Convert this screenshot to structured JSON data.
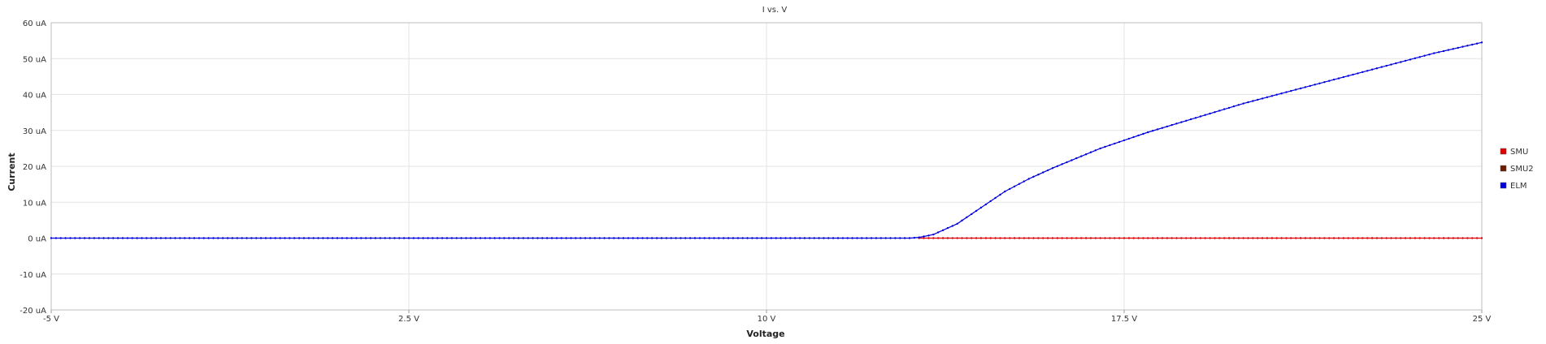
{
  "chart_data": {
    "type": "line",
    "title": "I vs. V",
    "xlabel": "Voltage",
    "ylabel": "Current",
    "xlim": [
      -5,
      25
    ],
    "ylim": [
      -20,
      60
    ],
    "x_ticks": [
      {
        "value": -5,
        "label": "-5 V"
      },
      {
        "value": 2.5,
        "label": "2.5 V"
      },
      {
        "value": 10,
        "label": "10 V"
      },
      {
        "value": 17.5,
        "label": "17.5 V"
      },
      {
        "value": 25,
        "label": "25 V"
      }
    ],
    "y_ticks": [
      {
        "value": -20,
        "label": "-20 uA"
      },
      {
        "value": -10,
        "label": "-10 uA"
      },
      {
        "value": 0,
        "label": "0 uA"
      },
      {
        "value": 10,
        "label": "10 uA"
      },
      {
        "value": 20,
        "label": "20 uA"
      },
      {
        "value": 30,
        "label": "30 uA"
      },
      {
        "value": 40,
        "label": "40 uA"
      },
      {
        "value": 50,
        "label": "50 uA"
      },
      {
        "value": 60,
        "label": "60 uA"
      }
    ],
    "grid": true,
    "legend_position": "right",
    "series": [
      {
        "name": "SMU",
        "color": "#e00000",
        "x": [
          13.2,
          14,
          15,
          16,
          17,
          18,
          19,
          20,
          21,
          22,
          23,
          24,
          25
        ],
        "y": [
          0,
          0,
          0,
          0,
          0,
          0,
          0,
          0,
          0,
          0,
          0,
          0,
          0
        ]
      },
      {
        "name": "SMU2",
        "color": "#6b1d00",
        "x": [],
        "y": []
      },
      {
        "name": "ELM",
        "color": "#0000dd",
        "x": [
          -5,
          0,
          5,
          10,
          13,
          13.2,
          13.5,
          14,
          14.5,
          15,
          15.5,
          16,
          17,
          18,
          19,
          20,
          21,
          22,
          23,
          24,
          25
        ],
        "y": [
          0,
          0,
          0,
          0,
          0,
          0.2,
          1,
          4,
          8.5,
          13,
          16.5,
          19.5,
          25,
          29.5,
          33.5,
          37.5,
          41,
          44.5,
          48,
          51.5,
          54.5
        ]
      }
    ]
  }
}
